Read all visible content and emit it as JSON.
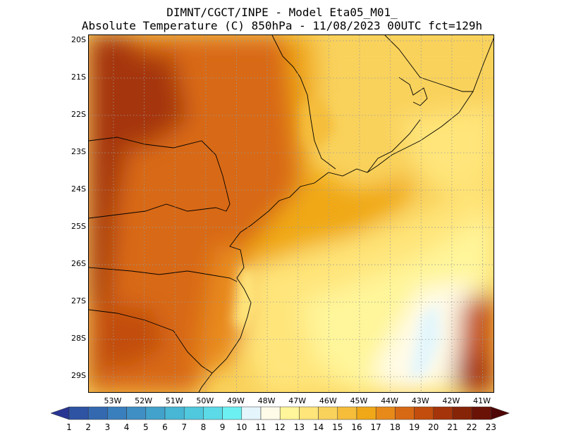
{
  "header": {
    "line1": "DIMNT/CGCT/INPE -  Model Eta05_M01_",
    "line2": "Absolute Temperature (C) 850hPa -  11/08/2023 00UTC fct=129h"
  },
  "map": {
    "lon_range": [
      -53.8,
      -40.6
    ],
    "lat_range": [
      -29.45,
      -19.85
    ],
    "lat_labels": [
      "20S",
      "21S",
      "22S",
      "23S",
      "24S",
      "25S",
      "26S",
      "27S",
      "28S",
      "29S"
    ],
    "lon_labels": [
      "53W",
      "52W",
      "51W",
      "50W",
      "49W",
      "48W",
      "47W",
      "46W",
      "45W",
      "44W",
      "43W",
      "42W",
      "41W"
    ],
    "grid": "dotted",
    "field_units": "C"
  },
  "colorbar": {
    "labels": [
      "1",
      "2",
      "3",
      "4",
      "5",
      "6",
      "7",
      "8",
      "9",
      "10",
      "11",
      "12",
      "13",
      "14",
      "15",
      "16",
      "17",
      "18",
      "19",
      "20",
      "21",
      "22",
      "23"
    ],
    "colors": [
      "#283593",
      "#2e53a3",
      "#3469b0",
      "#3a7fbd",
      "#3f8fc4",
      "#42a2cb",
      "#48b6d5",
      "#50c8dd",
      "#5cdae8",
      "#6df0f2",
      "#e4f6fb",
      "#fffbe8",
      "#fff59a",
      "#ffe57a",
      "#f9d25c",
      "#f5bd3a",
      "#f0a818",
      "#e88a1a",
      "#d86914",
      "#c24d0c",
      "#a5340a",
      "#862408",
      "#6b1207",
      "#4e0606"
    ]
  }
}
